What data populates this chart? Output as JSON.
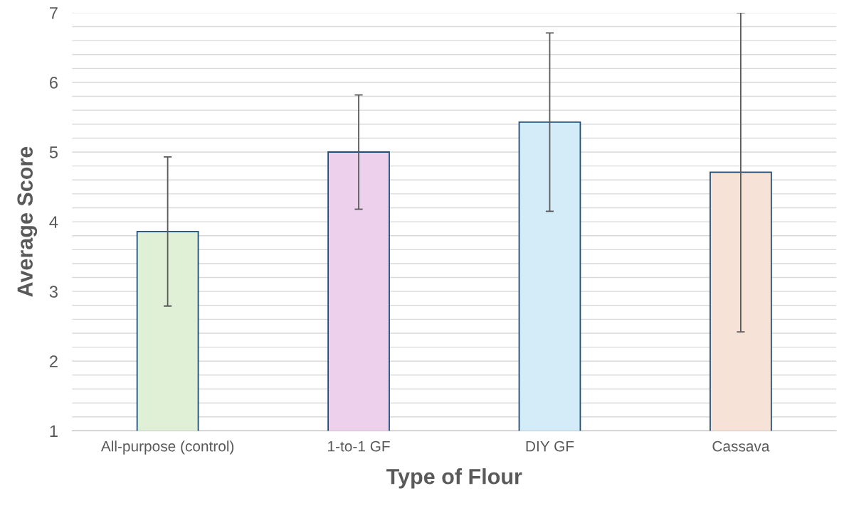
{
  "chart_data": {
    "type": "bar",
    "xlabel": "Type of Flour",
    "ylabel": "Average Score",
    "categories": [
      "All-purpose (control)",
      "1-to-1 GF",
      "DIY GF",
      "Cassava"
    ],
    "values": [
      3.86,
      5.0,
      5.43,
      4.71
    ],
    "errors": [
      1.07,
      0.82,
      1.28,
      2.29
    ],
    "colors": [
      "#e0f0d6",
      "#ecd0ec",
      "#d4ecf8",
      "#f6e2d6"
    ],
    "ylim": [
      1,
      7
    ],
    "yticks": [
      1,
      {
        "value": 1.2,
        "label": null
      },
      {
        "value": 1.4,
        "label": null
      },
      {
        "value": 1.6,
        "label": null
      },
      {
        "value": 1.8,
        "label": null
      },
      2,
      {
        "value": 2.2,
        "label": null
      },
      {
        "value": 2.4,
        "label": null
      },
      {
        "value": 2.6,
        "label": null
      },
      {
        "value": 2.8,
        "label": null
      },
      3,
      {
        "value": 3.2,
        "label": null
      },
      {
        "value": 3.4,
        "label": null
      },
      {
        "value": 3.6,
        "label": null
      },
      {
        "value": 3.8,
        "label": null
      },
      4,
      {
        "value": 4.2,
        "label": null
      },
      {
        "value": 4.4,
        "label": null
      },
      {
        "value": 4.6,
        "label": null
      },
      {
        "value": 4.8,
        "label": null
      },
      5,
      {
        "value": 5.2,
        "label": null
      },
      {
        "value": 5.4,
        "label": null
      },
      {
        "value": 5.6,
        "label": null
      },
      {
        "value": 5.8,
        "label": null
      },
      6,
      {
        "value": 6.2,
        "label": null
      },
      {
        "value": 6.4,
        "label": null
      },
      {
        "value": 6.6,
        "label": null
      },
      {
        "value": 6.8,
        "label": null
      },
      7
    ],
    "grid": "y"
  }
}
